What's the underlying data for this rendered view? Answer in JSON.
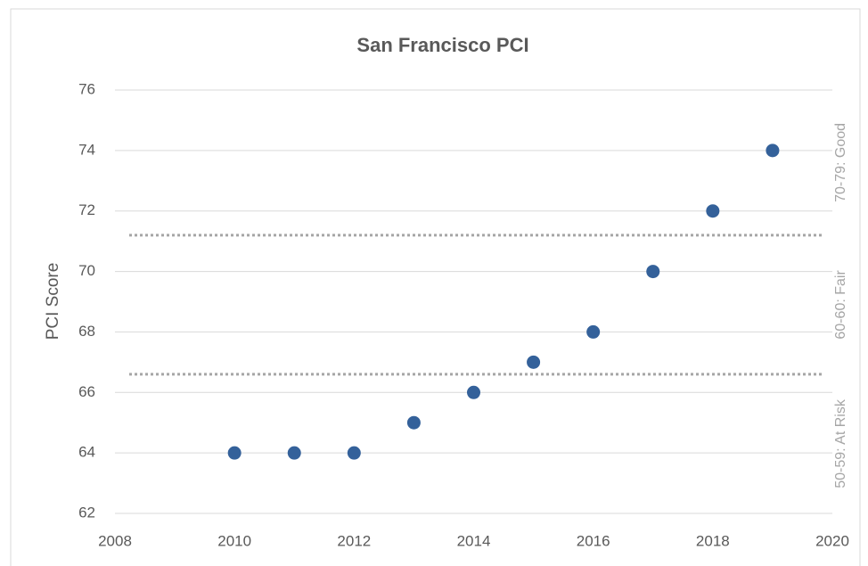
{
  "chart_data": {
    "type": "scatter",
    "title": "San Francisco PCI",
    "y_label": "PCI Score",
    "x": [
      2010,
      2011,
      2012,
      2013,
      2014,
      2015,
      2016,
      2017,
      2018,
      2019
    ],
    "values": [
      64,
      64,
      64,
      65,
      66,
      67,
      68,
      70,
      72,
      74
    ],
    "color": "#34619a",
    "xlim": [
      2008,
      2020
    ],
    "xticks": [
      2008,
      2010,
      2012,
      2014,
      2016,
      2018,
      2020
    ],
    "ylim": [
      62,
      76
    ],
    "yticks": [
      62,
      64,
      66,
      68,
      70,
      72,
      74,
      76
    ],
    "grid": true,
    "reference_lines": [
      71.2,
      66.6
    ],
    "bands": [
      "70-79: Good",
      "60-60: Fair",
      "50-59: At Risk"
    ]
  }
}
